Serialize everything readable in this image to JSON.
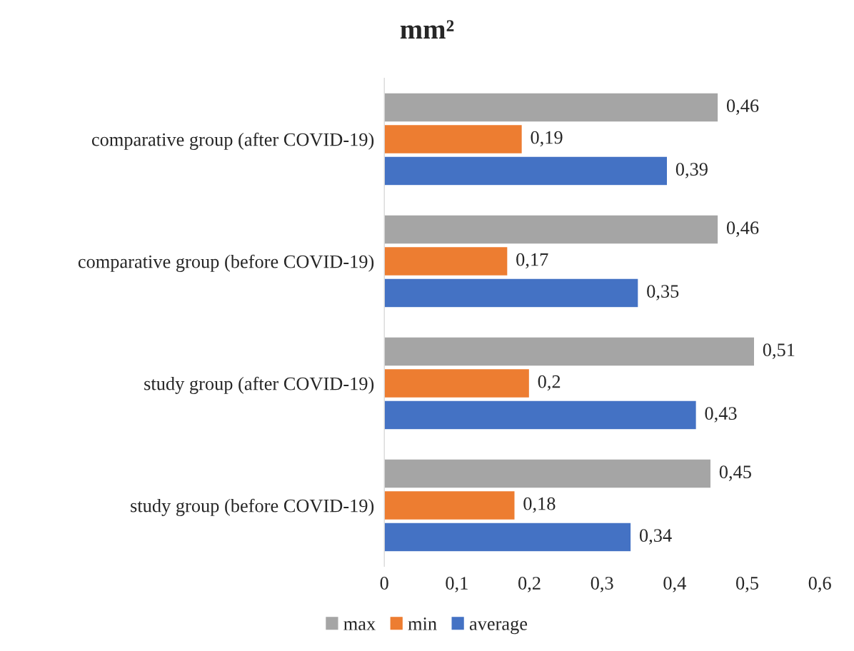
{
  "chart_data": {
    "type": "bar",
    "orientation": "horizontal",
    "title": "mm²",
    "categories": [
      "comparative group (after COVID-19)",
      "comparative group (before COVID-19)",
      "study group (after COVID-19)",
      "study group (before COVID-19)"
    ],
    "series": [
      {
        "name": "max",
        "color": "#a5a5a5",
        "values": [
          0.46,
          0.46,
          0.51,
          0.45
        ],
        "value_labels": [
          "0,46",
          "0,46",
          "0,51",
          "0,45"
        ]
      },
      {
        "name": "min",
        "color": "#ed7d31",
        "values": [
          0.19,
          0.17,
          0.2,
          0.18
        ],
        "value_labels": [
          "0,19",
          "0,17",
          "0,2",
          "0,18"
        ]
      },
      {
        "name": "average",
        "color": "#4472c4",
        "values": [
          0.39,
          0.35,
          0.43,
          0.34
        ],
        "value_labels": [
          "0,39",
          "0,35",
          "0,43",
          "0,34"
        ]
      }
    ],
    "xlim": [
      0,
      0.6
    ],
    "xticks": [
      0,
      {
        "value": 0.1,
        "label": "0,1"
      },
      {
        "value": 0.2,
        "label": "0,2"
      },
      {
        "value": 0.3,
        "label": "0,3"
      },
      {
        "value": 0.4,
        "label": "0,4"
      },
      {
        "value": 0.5,
        "label": "0,5"
      },
      {
        "value": 0.6,
        "label": "0,6"
      }
    ],
    "grid": false,
    "legend": "bottom"
  }
}
